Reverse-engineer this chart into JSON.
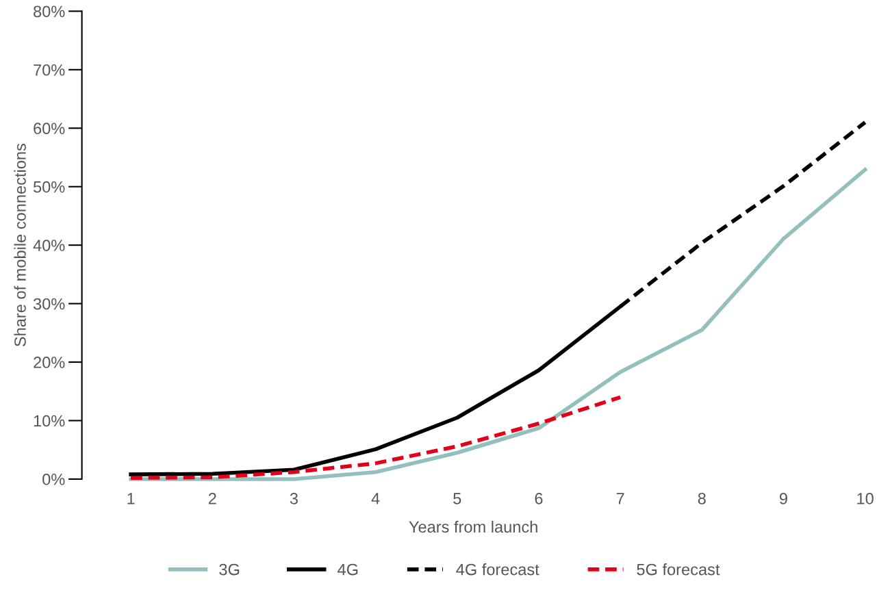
{
  "chart_data": {
    "type": "line",
    "xlabel": "Years from launch",
    "ylabel": "Share of mobile connections",
    "xlim": [
      0.4,
      10
    ],
    "xticks": [
      1,
      2,
      3,
      4,
      5,
      6,
      7,
      8,
      9,
      10
    ],
    "ylim": [
      0,
      80
    ],
    "yticks": [
      {
        "value": 0,
        "label": "0%"
      },
      {
        "value": 10,
        "label": "10%"
      },
      {
        "value": 20,
        "label": "20%"
      },
      {
        "value": 30,
        "label": "30%"
      },
      {
        "value": 40,
        "label": "40%"
      },
      {
        "value": 50,
        "label": "50%"
      },
      {
        "value": 60,
        "label": "60%"
      },
      {
        "value": 70,
        "label": "70%"
      },
      {
        "value": 80,
        "label": "80%"
      }
    ],
    "grid": false,
    "legend": "bottom",
    "marker": "none",
    "series": [
      {
        "name": "3G",
        "color": "#93bfbc",
        "line_style": "solid",
        "x": [
          1,
          2,
          3,
          4,
          5,
          6,
          7,
          8,
          9,
          10
        ],
        "values": [
          0,
          0,
          0,
          1.2,
          4.5,
          8.7,
          18.3,
          25.5,
          41.1,
          52.9
        ]
      },
      {
        "name": "4G",
        "color": "#000000",
        "line_style": "solid",
        "x": [
          1,
          2,
          3,
          4,
          5,
          6,
          7
        ],
        "values": [
          0.8,
          0.9,
          1.6,
          5.1,
          10.5,
          18.6,
          29.5
        ]
      },
      {
        "name": "4G forecast",
        "color": "#000000",
        "line_style": "dashed",
        "x": [
          7,
          8,
          9,
          10
        ],
        "values": [
          29.5,
          40.4,
          50.1,
          61
        ]
      },
      {
        "name": "5G forecast",
        "color": "#e2001a",
        "line_style": "dashed",
        "x": [
          1,
          2,
          3,
          4,
          5,
          6,
          7
        ],
        "values": [
          0.2,
          0.3,
          1.2,
          2.7,
          5.6,
          9.5,
          14
        ]
      }
    ]
  }
}
